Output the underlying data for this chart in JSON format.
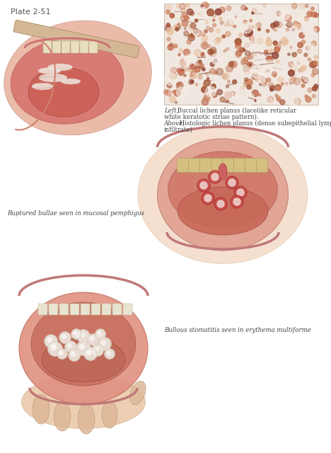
{
  "title": "Plate 2-51",
  "background_color": "#ffffff",
  "fig_width": 4.68,
  "fig_height": 6.4,
  "dpi": 100,
  "caption_top_right_line1_italic": "Left,",
  "caption_top_right_line1_normal": " Buccal lichen planus (lacelike reticular",
  "caption_top_right_line2_normal": "white keratotic striae pattern).",
  "caption_top_right_line3_italic": "Above,",
  "caption_top_right_line3_normal": " Histologic lichen planus (dense subepithelial lymphocytic",
  "caption_top_right_line4_normal": "infiltrate)",
  "caption_middle_left": "Ruptured bullae seen in mucosal pemphigus",
  "caption_bottom_right": "Bullous stomatitis seen in erythema multiforme",
  "title_fontsize": 8,
  "caption_fontsize": 6.2,
  "title_color": "#555555",
  "caption_color": "#444444"
}
